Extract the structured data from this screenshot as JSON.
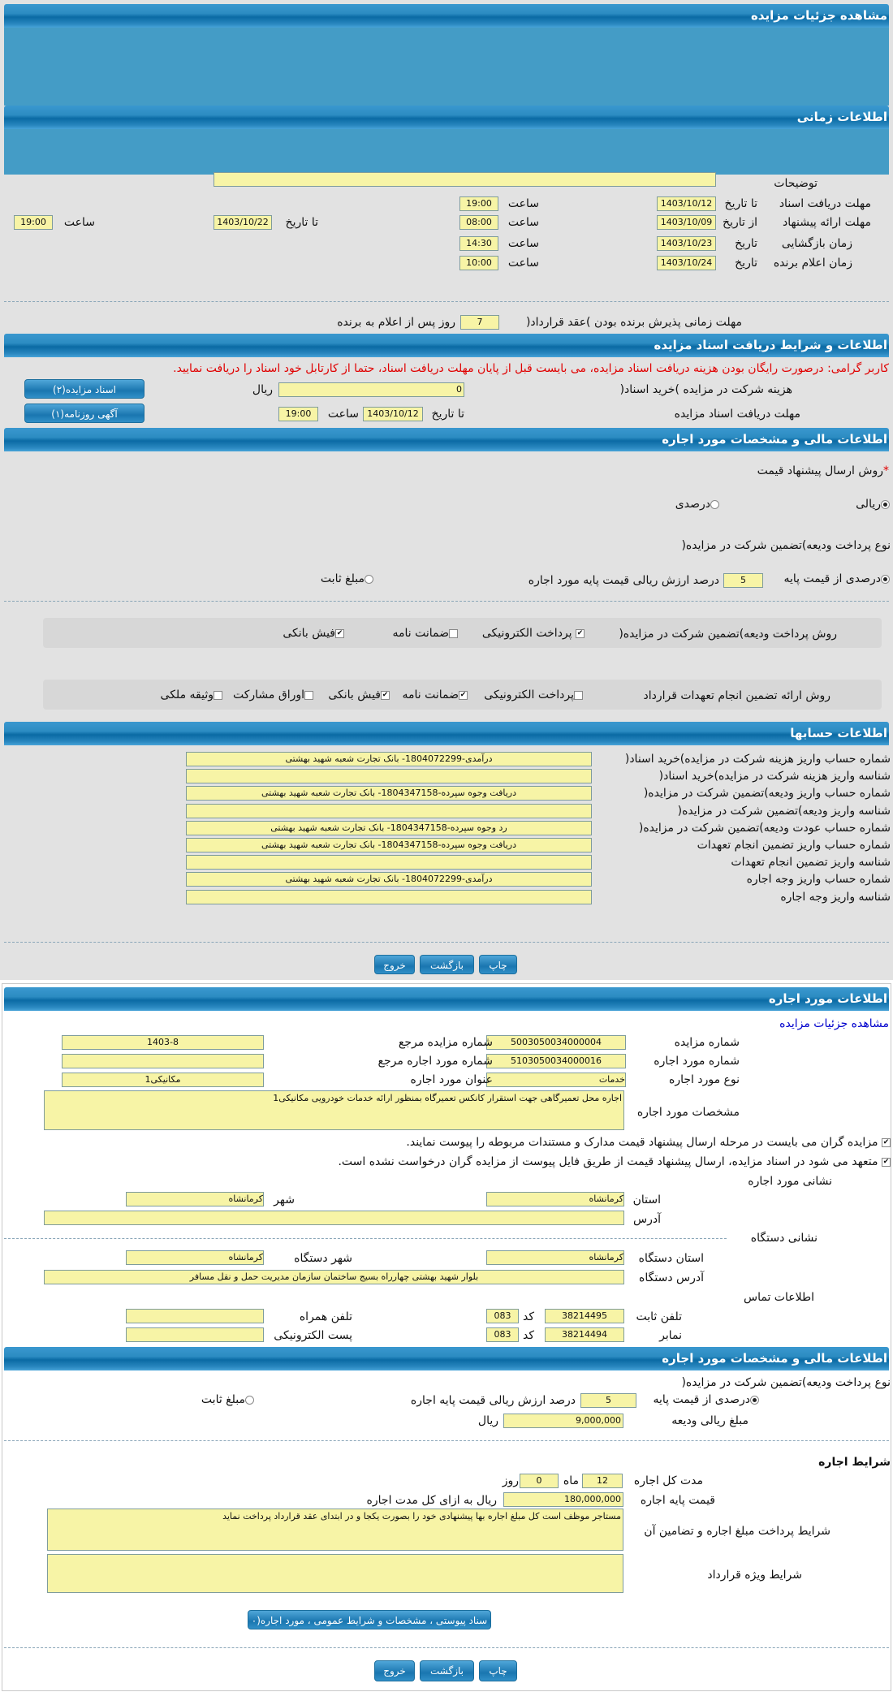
{
  "colors": {
    "header": "#1a78b2",
    "panel": "#e2e2e2",
    "field": "#f7f4a6",
    "warning": "#e00000",
    "link": "#0000cc"
  },
  "headers": {
    "details": "مشاهده جزئیات مزایده",
    "timing": "اطلاعات زمانی",
    "docs": "اطلاعات و شرایط دریافت اسناد مزایده",
    "financial": "اطلاعات مالی و مشخصات مورد اجاره",
    "accounts": "اطلاعات حسابها",
    "lease": "اطلاعات مورد اجاره",
    "financial2": "اطلاعات مالی و مشخصات مورد اجاره"
  },
  "timing": {
    "desc_label": "توضیحات",
    "desc_value": "",
    "doc_label": "مهلت دریافت اسناد",
    "to_date": "تا تاریخ",
    "from_date": "از تاریخ",
    "date": "تاریخ",
    "hour": "ساعت",
    "doc_date": "1403/10/12",
    "doc_time": "19:00",
    "offer_label": "مهلت ارائه پیشنهاد",
    "offer_from_date": "1403/10/09",
    "offer_from_time": "08:00",
    "offer_to_date": "1403/10/22",
    "offer_to_time": "19:00",
    "open_label": "زمان بازگشایی",
    "open_date": "1403/10/23",
    "open_time": "14:30",
    "winner_label": "زمان اعلام برنده",
    "winner_date": "1403/10/24",
    "winner_time": "10:00",
    "accept_label": "مهلت زمانی پذیرش برنده بودن )عقد قرارداد(",
    "accept_days": "7",
    "accept_suffix": "روز پس از اعلام به برنده"
  },
  "docs": {
    "warning": "کاربر گرامی: درصورت رایگان بودن هزینه دریافت اسناد مزایده، می بایست قبل از پایان مهلت دریافت اسناد، حتما از کارتابل خود اسناد را دریافت نمایید.",
    "fee_label": "هزینه شرکت در مزایده )خرید اسناد(",
    "fee_value": "0",
    "currency": "ریال",
    "deadline_label": "مهلت دریافت اسناد مزایده",
    "to_date": "تا تاریخ",
    "date": "1403/10/12",
    "hour": "ساعت",
    "time": "19:00",
    "btn_docs": "اسناد مزایده(۲)",
    "btn_ad": "آگهی روزنامه(۱)"
  },
  "financial": {
    "method_label": "روش ارسال پیشنهاد قیمت",
    "required": "*",
    "method_options": [
      {
        "label": "ریالی",
        "selected": true
      },
      {
        "label": "درصدی",
        "selected": false
      }
    ],
    "deposit_type_label": "نوع پرداخت ودیعه)تضمین شرکت در مزایده(",
    "deposit_percent_label": "درصدی از قیمت پایه",
    "deposit_percent": "5",
    "deposit_percent_suffix": "درصد ارزش ریالی قیمت پایه مورد اجاره",
    "fixed_label": "مبلغ ثابت",
    "deposit_method_label": "روش پرداخت ودیعه)تضمین شرکت در مزایده(",
    "deposit_methods": [
      {
        "label": "پرداخت الکترونیکی",
        "checked": true
      },
      {
        "label": "ضمانت نامه",
        "checked": false
      },
      {
        "label": "فیش بانکی",
        "checked": true
      }
    ],
    "guarantee_label": "روش ارائه تضمین انجام تعهدات قرارداد",
    "guarantee_methods": [
      {
        "label": "پرداخت الکترونیکی",
        "checked": false
      },
      {
        "label": "ضمانت نامه",
        "checked": true
      },
      {
        "label": "فیش بانکی",
        "checked": true
      },
      {
        "label": "اوراق مشارکت",
        "checked": false
      },
      {
        "label": "وثیقه ملکی",
        "checked": false
      }
    ]
  },
  "accounts": [
    {
      "label": "شماره حساب واریز هزینه شرکت در مزایده)خرید اسناد(",
      "value": "درآمدی-1804072299- بانک تجارت شعبه شهید بهشتی"
    },
    {
      "label": "شناسه واریز هزینه شرکت در مزایده)خرید اسناد(",
      "value": ""
    },
    {
      "label": "شماره حساب واریز ودیعه)تضمین شرکت در مزایده(",
      "value": "دریافت وجوه سپرده-1804347158- بانک تجارت شعبه شهید بهشتی"
    },
    {
      "label": "شناسه واریز ودیعه)تضمین شرکت در مزایده(",
      "value": ""
    },
    {
      "label": "شماره حساب عودت ودیعه)تضمین شرکت در مزایده(",
      "value": "رد وجوه سپرده-1804347158- بانک تجارت شعبه شهید بهشتی"
    },
    {
      "label": "شماره حساب واریز تضمین انجام تعهدات",
      "value": "دریافت وجوه سپرده-1804347158- بانک تجارت شعبه شهید بهشتی"
    },
    {
      "label": "شناسه واریز تضمین انجام تعهدات",
      "value": ""
    },
    {
      "label": "شماره حساب واریز وجه اجاره",
      "value": "درآمدی-1804072299- بانک تجارت شعبه شهید بهشتی"
    },
    {
      "label": "شناسه واریز وجه اجاره",
      "value": ""
    }
  ],
  "actions": {
    "print": "چاپ",
    "back": "بازگشت",
    "exit": "خروج"
  },
  "lease": {
    "link": "مشاهده جزئیات مزایده",
    "auction_no_label": "شماره مزایده",
    "auction_no": "5003050034000004",
    "ref_auction_label": "شماره مزایده مرجع",
    "ref_auction": "1403-8",
    "item_no_label": "شماره مورد اجاره",
    "item_no": "5103050034000016",
    "ref_item_label": "شماره مورد اجاره مرجع",
    "ref_item": "",
    "type_label": "نوع مورد اجاره",
    "type": "خدمات",
    "title_label": "عنوان مورد اجاره",
    "title": "مکانیکی1",
    "spec_label": "مشخصات مورد اجاره",
    "spec": "اجاره محل تعمیرگاهی جهت استقرار کانکس تعمیرگاه بمنظور ارائه خدمات خودرویی مکانیکی1",
    "check1": "مزایده گران می بایست در مرحله ارسال پیشنهاد قیمت مدارک و مستندات مربوطه را پیوست نمایند.",
    "check2": "متعهد می شود در اسناد مزایده، ارسال پیشنهاد قیمت از طریق فایل پیوست از مزایده گران درخواست نشده است.",
    "address_title": "نشانی مورد اجاره",
    "province_label": "استان",
    "province": "کرمانشاه",
    "city_label": "شهر",
    "city": "کرمانشاه",
    "address_label": "آدرس",
    "address": "",
    "org_title": "نشانی دستگاه",
    "org_province_label": "استان دستگاه",
    "org_province": "کرمانشاه",
    "org_city_label": "شهر دستگاه",
    "org_city": "کرمانشاه",
    "org_address_label": "آدرس دستگاه",
    "org_address": "بلوار شهید بهشتی چهارراه بسیج ساختمان سازمان مدیریت حمل و نقل مسافر",
    "contact_title": "اطلاعات تماس",
    "phone_label": "تلفن ثابت",
    "phone": "38214495",
    "code_label": "کد",
    "phone_code": "083",
    "mobile_label": "تلفن همراه",
    "mobile": "",
    "fax_label": "نمابر",
    "fax": "38214494",
    "fax_code": "083",
    "email_label": "پست الکترونیکی",
    "email": ""
  },
  "financial2": {
    "deposit_type_label": "نوع پرداخت ودیعه)تضمین شرکت در مزایده(",
    "percent_label": "درصدی از قیمت پایه",
    "percent": "5",
    "percent_suffix": "درصد ارزش ریالی قیمت پایه اجاره",
    "fixed_label": "مبلغ ثابت",
    "amount_label": "مبلغ ریالی ودیعه",
    "amount": "9,000,000",
    "currency": "ریال"
  },
  "terms": {
    "title": "شرایط اجاره",
    "duration_label": "مدت کل اجاره",
    "months": "12",
    "month_unit": "ماه",
    "days": "0",
    "day_unit": "روز",
    "base_label": "قیمت پایه اجاره",
    "base": "180,000,000",
    "base_suffix": "ریال به ازای کل مدت اجاره",
    "payment_label": "شرایط پرداخت مبلغ اجاره و تضامین آن",
    "payment": "مستاجر موظف است کل مبلغ اجاره بها پیشنهادی خود را بصورت یکجا و در ابتدای عقد قرارداد پرداخت نماید",
    "special_label": "شرایط ویژه قرارداد",
    "special": "",
    "attach_btn": "سناد پیوستی ، مشخصات و شرایط عمومی ، مورد اجاره(۰"
  }
}
